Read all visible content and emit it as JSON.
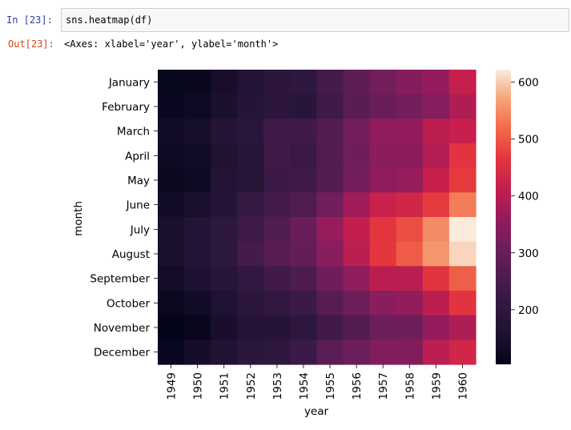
{
  "cell_in": {
    "prompt": "In  [23]:",
    "code": "sns.heatmap(df)"
  },
  "cell_out": {
    "prompt": "Out[23]:",
    "text": "<Axes: xlabel='year', ylabel='month'>"
  },
  "chart_data": {
    "type": "heatmap",
    "xlabel": "year",
    "ylabel": "month",
    "x": [
      "1949",
      "1950",
      "1951",
      "1952",
      "1953",
      "1954",
      "1955",
      "1956",
      "1957",
      "1958",
      "1959",
      "1960"
    ],
    "y": [
      "January",
      "February",
      "March",
      "April",
      "May",
      "June",
      "July",
      "August",
      "September",
      "October",
      "November",
      "December"
    ],
    "values": [
      [
        112,
        115,
        145,
        171,
        196,
        204,
        242,
        284,
        315,
        340,
        360,
        417
      ],
      [
        118,
        126,
        150,
        180,
        196,
        188,
        233,
        277,
        301,
        318,
        342,
        391
      ],
      [
        132,
        141,
        178,
        193,
        236,
        235,
        267,
        317,
        356,
        362,
        406,
        419
      ],
      [
        129,
        135,
        163,
        181,
        235,
        227,
        269,
        313,
        348,
        348,
        396,
        461
      ],
      [
        121,
        125,
        172,
        183,
        229,
        234,
        270,
        318,
        355,
        363,
        420,
        472
      ],
      [
        135,
        149,
        178,
        218,
        243,
        264,
        315,
        374,
        422,
        435,
        472,
        535
      ],
      [
        148,
        170,
        199,
        230,
        264,
        302,
        364,
        413,
        465,
        491,
        548,
        622
      ],
      [
        148,
        170,
        199,
        242,
        272,
        293,
        347,
        405,
        467,
        505,
        559,
        606
      ],
      [
        136,
        158,
        184,
        209,
        237,
        259,
        312,
        355,
        404,
        404,
        463,
        508
      ],
      [
        119,
        133,
        162,
        191,
        211,
        229,
        274,
        306,
        347,
        359,
        407,
        461
      ],
      [
        104,
        114,
        146,
        172,
        180,
        203,
        237,
        271,
        305,
        310,
        362,
        390
      ],
      [
        118,
        140,
        166,
        194,
        201,
        229,
        278,
        306,
        336,
        337,
        405,
        432
      ]
    ],
    "colorbar": {
      "ticks": [
        200,
        300,
        400,
        500,
        600
      ],
      "min": 104,
      "max": 622,
      "colormap": "rocket"
    }
  }
}
